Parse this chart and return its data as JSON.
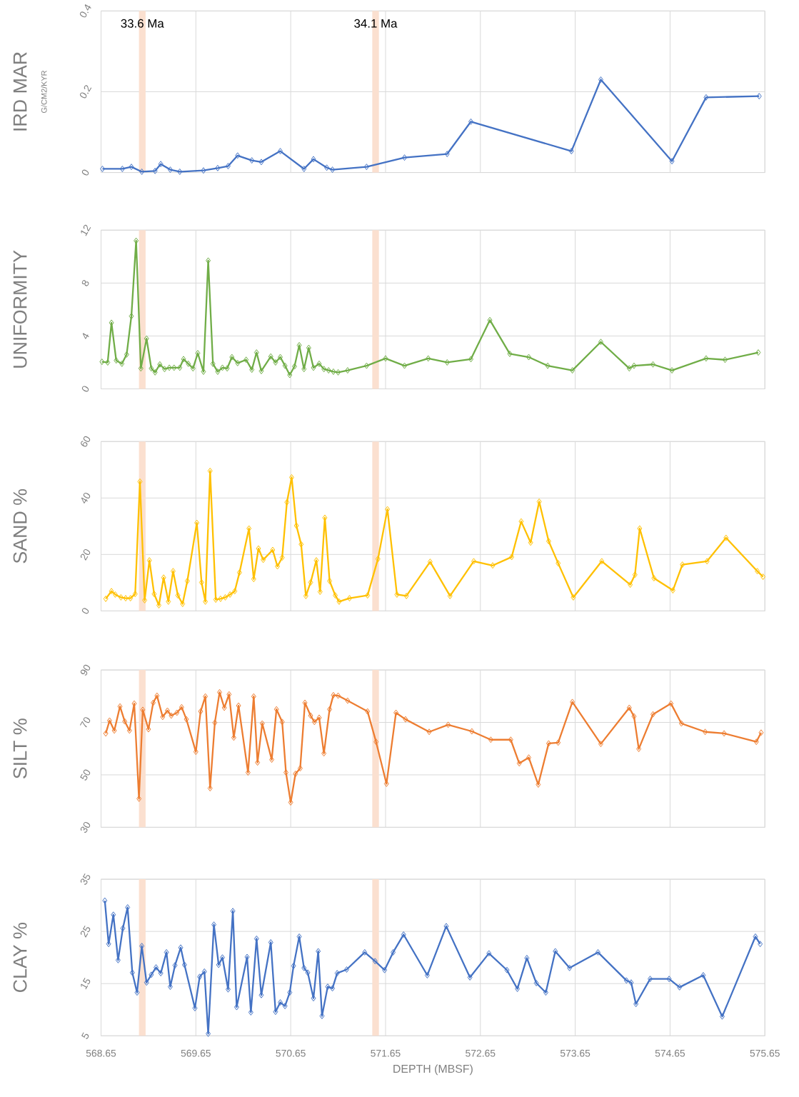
{
  "chart_data": [
    {
      "type": "line",
      "ylabel": "IRD MAR",
      "annotations": [
        "G/CM2/KYR"
      ],
      "xlim": [
        568.65,
        575.65
      ],
      "xticks": [
        568.65,
        569.65,
        570.65,
        571.65,
        572.65,
        573.65,
        574.65,
        575.65
      ],
      "ylim": [
        0,
        0.4
      ],
      "yticks": [
        0,
        0.2,
        0.4
      ],
      "tick_labels": "y",
      "grid": true,
      "marker": "diamond",
      "line_style": "solid",
      "bands": [
        {
          "axis": "x",
          "from": 569.05,
          "to": 569.12,
          "label": "33.6 Ma",
          "color": "#fbe0d0"
        },
        {
          "axis": "x",
          "from": 571.51,
          "to": 571.58,
          "label": "34.1 Ma",
          "color": "#fbe0d0"
        }
      ],
      "x": [
        568.665,
        568.875,
        568.97,
        569.08,
        569.22,
        569.28,
        569.38,
        569.48,
        569.73,
        569.88,
        569.99,
        570.09,
        570.24,
        570.34,
        570.54,
        570.79,
        570.89,
        571.03,
        571.09,
        571.45,
        571.85,
        572.3,
        572.55,
        573.61,
        573.92,
        574.67,
        575.03,
        575.59
      ],
      "series": [
        {
          "color": "#4472c4",
          "values": [
            0.009,
            0.009,
            0.014,
            0.002,
            0.004,
            0.021,
            0.007,
            0.002,
            0.005,
            0.011,
            0.016,
            0.042,
            0.03,
            0.026,
            0.053,
            0.009,
            0.033,
            0.012,
            0.007,
            0.014,
            0.037,
            0.046,
            0.126,
            0.053,
            0.23,
            0.028,
            0.186,
            0.189
          ]
        }
      ]
    },
    {
      "type": "line",
      "ylabel": "UNIFORMITY",
      "xlim": [
        568.65,
        575.65
      ],
      "xticks": [
        568.65,
        569.65,
        570.65,
        571.65,
        572.65,
        573.65,
        574.65,
        575.65
      ],
      "ylim": [
        0,
        12
      ],
      "yticks": [
        0,
        4,
        8,
        12
      ],
      "tick_labels": "y",
      "grid": true,
      "marker": "diamond",
      "line_style": "solid",
      "bands": [
        {
          "axis": "x",
          "from": 569.05,
          "to": 569.12,
          "color": "#fbe0d0"
        },
        {
          "axis": "x",
          "from": 571.51,
          "to": 571.58,
          "color": "#fbe0d0"
        }
      ],
      "x": [
        568.66,
        568.72,
        568.76,
        568.81,
        568.87,
        568.92,
        568.97,
        569.02,
        569.07,
        569.13,
        569.18,
        569.22,
        569.27,
        569.32,
        569.37,
        569.42,
        569.48,
        569.52,
        569.57,
        569.62,
        569.67,
        569.73,
        569.78,
        569.83,
        569.88,
        569.93,
        569.98,
        570.03,
        570.09,
        570.18,
        570.24,
        570.29,
        570.34,
        570.44,
        570.49,
        570.54,
        570.59,
        570.64,
        570.69,
        570.74,
        570.79,
        570.84,
        570.89,
        570.95,
        571.0,
        571.05,
        571.1,
        571.15,
        571.25,
        571.45,
        571.65,
        571.85,
        572.1,
        572.3,
        572.55,
        572.75,
        572.96,
        573.16,
        573.36,
        573.62,
        573.92,
        574.22,
        574.27,
        574.47,
        574.67,
        575.03,
        575.23,
        575.58
      ],
      "series": [
        {
          "color": "#70ad47",
          "values": [
            2.05,
            2.0,
            5.0,
            2.15,
            1.9,
            2.6,
            5.5,
            11.2,
            1.55,
            3.8,
            1.55,
            1.25,
            1.85,
            1.5,
            1.6,
            1.6,
            1.6,
            2.25,
            1.9,
            1.55,
            2.7,
            1.3,
            9.7,
            1.9,
            1.3,
            1.6,
            1.55,
            2.4,
            1.95,
            2.2,
            1.45,
            2.75,
            1.35,
            2.45,
            2.0,
            2.4,
            1.75,
            1.05,
            1.7,
            3.3,
            1.5,
            3.1,
            1.6,
            1.9,
            1.5,
            1.4,
            1.3,
            1.25,
            1.4,
            1.75,
            2.3,
            1.75,
            2.3,
            2.0,
            2.25,
            5.2,
            2.65,
            2.4,
            1.75,
            1.4,
            3.55,
            1.55,
            1.75,
            1.85,
            1.4,
            2.3,
            2.2,
            2.75
          ]
        }
      ]
    },
    {
      "type": "line",
      "ylabel": "SAND %",
      "xlim": [
        568.65,
        575.65
      ],
      "xticks": [
        568.65,
        569.65,
        570.65,
        571.65,
        572.65,
        573.65,
        574.65,
        575.65
      ],
      "ylim": [
        0,
        60
      ],
      "yticks": [
        0,
        20,
        40,
        60
      ],
      "tick_labels": "y",
      "grid": true,
      "marker": "diamond",
      "line_style": "solid",
      "bands": [
        {
          "axis": "x",
          "from": 569.05,
          "to": 569.12,
          "color": "#fbe0d0"
        },
        {
          "axis": "x",
          "from": 571.51,
          "to": 571.58,
          "color": "#fbe0d0"
        }
      ],
      "x": [
        568.7,
        568.76,
        568.8,
        568.86,
        568.91,
        568.96,
        569.01,
        569.06,
        569.11,
        569.16,
        569.21,
        569.26,
        569.31,
        569.36,
        569.41,
        569.46,
        569.51,
        569.56,
        569.66,
        569.71,
        569.75,
        569.8,
        569.86,
        569.91,
        569.96,
        570.01,
        570.06,
        570.11,
        570.21,
        570.26,
        570.31,
        570.36,
        570.46,
        570.51,
        570.56,
        570.61,
        570.66,
        570.71,
        570.76,
        570.81,
        570.86,
        570.92,
        570.96,
        571.01,
        571.06,
        571.12,
        571.16,
        571.27,
        571.46,
        571.57,
        571.67,
        571.77,
        571.87,
        572.12,
        572.33,
        572.58,
        572.78,
        572.98,
        573.08,
        573.18,
        573.27,
        573.37,
        573.47,
        573.63,
        573.93,
        574.23,
        574.28,
        574.33,
        574.48,
        574.68,
        574.78,
        575.04,
        575.24,
        575.57,
        575.63
      ],
      "series": [
        {
          "color": "#ffc000",
          "values": [
            4.3,
            7.0,
            5.8,
            4.8,
            4.5,
            4.5,
            6.0,
            45.8,
            3.8,
            17.9,
            6.0,
            2.0,
            11.8,
            3.3,
            14.1,
            5.5,
            2.5,
            10.6,
            31.2,
            10.1,
            3.3,
            49.6,
            4.0,
            4.3,
            4.8,
            5.8,
            7.0,
            13.6,
            29.2,
            11.3,
            22.1,
            18.1,
            21.6,
            15.8,
            18.9,
            38.5,
            47.3,
            30.2,
            23.6,
            5.3,
            10.1,
            17.9,
            6.8,
            33.0,
            10.6,
            5.5,
            3.3,
            4.5,
            5.5,
            18.4,
            36.0,
            5.8,
            5.3,
            17.4,
            5.3,
            17.6,
            16.1,
            19.1,
            31.7,
            24.2,
            38.7,
            24.7,
            16.9,
            4.8,
            17.6,
            9.3,
            12.8,
            29.2,
            11.6,
            7.3,
            16.4,
            17.6,
            25.9,
            14.1,
            12.1
          ]
        }
      ]
    },
    {
      "type": "line",
      "ylabel": "SILT %",
      "xlim": [
        568.65,
        575.65
      ],
      "xticks": [
        568.65,
        569.65,
        570.65,
        571.65,
        572.65,
        573.65,
        574.65,
        575.65
      ],
      "ylim": [
        30,
        90
      ],
      "yticks": [
        30,
        50,
        70,
        90
      ],
      "tick_labels": "y",
      "grid": true,
      "marker": "diamond",
      "line_style": "solid",
      "bands": [
        {
          "axis": "x",
          "from": 569.05,
          "to": 569.12,
          "color": "#fbe0d0"
        },
        {
          "axis": "x",
          "from": 571.51,
          "to": 571.58,
          "color": "#fbe0d0"
        }
      ],
      "x": [
        568.7,
        568.74,
        568.79,
        568.85,
        568.9,
        568.95,
        569.0,
        569.05,
        569.09,
        569.15,
        569.2,
        569.24,
        569.3,
        569.35,
        569.39,
        569.45,
        569.5,
        569.55,
        569.65,
        569.7,
        569.75,
        569.8,
        569.85,
        569.9,
        569.95,
        570.0,
        570.05,
        570.1,
        570.2,
        570.26,
        570.3,
        570.35,
        570.45,
        570.5,
        570.56,
        570.6,
        570.65,
        570.7,
        570.75,
        570.8,
        570.86,
        570.9,
        570.95,
        571.0,
        571.06,
        571.1,
        571.15,
        571.25,
        571.46,
        571.55,
        571.66,
        571.76,
        571.86,
        572.11,
        572.31,
        572.56,
        572.76,
        572.97,
        573.06,
        573.16,
        573.26,
        573.37,
        573.47,
        573.62,
        573.92,
        574.22,
        574.27,
        574.32,
        574.47,
        574.66,
        574.77,
        575.02,
        575.22,
        575.56,
        575.61
      ],
      "series": [
        {
          "color": "#ed7d31",
          "values": [
            65.8,
            70.7,
            66.9,
            76.1,
            70.4,
            66.9,
            77.2,
            40.9,
            74.8,
            67.4,
            77.5,
            80.2,
            72.1,
            74.5,
            72.6,
            73.7,
            75.8,
            71.2,
            58.8,
            74.2,
            79.9,
            44.9,
            69.9,
            81.5,
            75.6,
            80.7,
            64.2,
            76.4,
            50.9,
            79.9,
            54.7,
            69.6,
            55.8,
            75.0,
            70.2,
            50.9,
            39.5,
            50.4,
            52.5,
            77.5,
            72.6,
            70.2,
            71.8,
            58.2,
            75.0,
            80.4,
            80.2,
            78.3,
            74.2,
            62.6,
            46.6,
            73.7,
            71.2,
            66.4,
            69.1,
            66.6,
            63.4,
            63.4,
            54.4,
            56.6,
            46.3,
            62.0,
            62.3,
            77.8,
            61.8,
            75.6,
            72.3,
            59.9,
            73.1,
            77.2,
            69.6,
            66.4,
            65.8,
            62.6,
            66.1
          ]
        }
      ]
    },
    {
      "type": "line",
      "ylabel": "CLAY %",
      "xlabel": "DEPTH (MBSF)",
      "xlim": [
        568.65,
        575.65
      ],
      "xticks": [
        568.65,
        569.65,
        570.65,
        571.65,
        572.65,
        573.65,
        574.65,
        575.65
      ],
      "ylim": [
        5,
        35
      ],
      "yticks": [
        5,
        15,
        25,
        35
      ],
      "grid": true,
      "marker": "diamond",
      "line_style": "solid",
      "bands": [
        {
          "axis": "x",
          "from": 569.05,
          "to": 569.12,
          "color": "#fbe0d0"
        },
        {
          "axis": "x",
          "from": 571.51,
          "to": 571.58,
          "color": "#fbe0d0"
        }
      ],
      "x": [
        568.69,
        568.73,
        568.78,
        568.83,
        568.88,
        568.93,
        568.98,
        569.03,
        569.08,
        569.13,
        569.18,
        569.23,
        569.28,
        569.34,
        569.38,
        569.43,
        569.49,
        569.53,
        569.64,
        569.69,
        569.74,
        569.78,
        569.84,
        569.89,
        569.93,
        569.99,
        570.04,
        570.08,
        570.19,
        570.23,
        570.29,
        570.34,
        570.44,
        570.49,
        570.54,
        570.59,
        570.64,
        570.68,
        570.74,
        570.79,
        570.83,
        570.89,
        570.94,
        570.98,
        571.04,
        571.09,
        571.14,
        571.24,
        571.43,
        571.54,
        571.64,
        571.73,
        571.84,
        572.09,
        572.29,
        572.54,
        572.74,
        572.93,
        573.04,
        573.14,
        573.24,
        573.34,
        573.44,
        573.59,
        573.89,
        574.19,
        574.24,
        574.29,
        574.44,
        574.64,
        574.75,
        575.0,
        575.2,
        575.55,
        575.6
      ],
      "series": [
        {
          "color": "#4472c4",
          "values": [
            30.9,
            22.6,
            28.2,
            19.5,
            25.6,
            29.6,
            17.1,
            13.3,
            22.2,
            15.2,
            16.7,
            18.1,
            17.0,
            21.0,
            14.4,
            18.5,
            21.9,
            18.6,
            10.3,
            16.3,
            17.3,
            5.4,
            26.3,
            18.6,
            20.0,
            13.9,
            28.9,
            10.5,
            20.1,
            9.5,
            23.6,
            12.8,
            22.9,
            9.6,
            11.4,
            10.7,
            13.3,
            18.4,
            24.0,
            18.0,
            17.1,
            12.2,
            21.2,
            8.8,
            14.4,
            14.1,
            17.0,
            17.7,
            21.0,
            19.3,
            17.6,
            21.0,
            24.4,
            16.6,
            26.0,
            16.2,
            20.8,
            17.6,
            14.0,
            19.9,
            15.1,
            13.3,
            21.2,
            18.0,
            21.0,
            15.6,
            15.2,
            11.1,
            15.9,
            15.9,
            14.3,
            16.6,
            8.7,
            24.0,
            22.6
          ]
        }
      ]
    }
  ]
}
